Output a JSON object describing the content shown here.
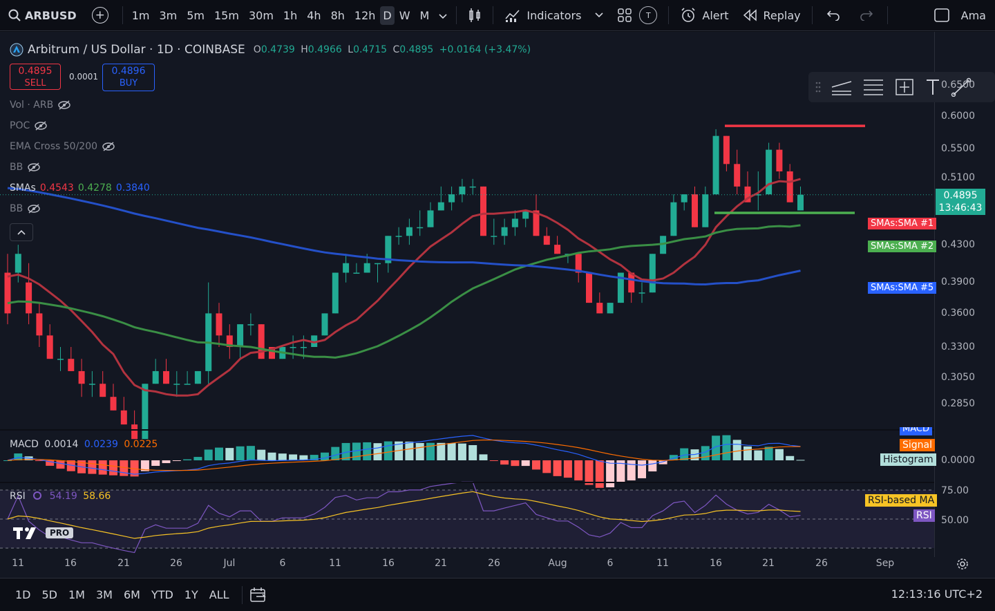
{
  "toolbar": {
    "symbol": "ARBUSD",
    "intervals": [
      "1m",
      "3m",
      "5m",
      "15m",
      "30m",
      "1h",
      "4h",
      "8h",
      "12h",
      "D",
      "W",
      "M"
    ],
    "active_interval": "D",
    "indicators_label": "Indicators",
    "alert_label": "Alert",
    "replay_label": "Replay",
    "account_label": "Ama",
    "t_badge": "T"
  },
  "legend": {
    "title": "Arbitrum / US Dollar · 1D · COINBASE",
    "o_label": "O",
    "o": "0.4739",
    "h_label": "H",
    "h": "0.4966",
    "l_label": "L",
    "l": "0.4715",
    "c_label": "C",
    "c": "0.4895",
    "change": "+0.0164 (+3.47%)"
  },
  "trade": {
    "sell_price": "0.4895",
    "sell_label": "SELL",
    "spread": "0.0001",
    "buy_price": "0.4896",
    "buy_label": "BUY"
  },
  "indicators": {
    "vol": "Vol · ARB",
    "poc": "POC",
    "ema_cross": "EMA Cross 50/200",
    "bb1": "BB",
    "smas_label": "SMAs",
    "sma1": "0.4543",
    "sma2": "0.4278",
    "sma5": "0.3840",
    "bb2": "BB"
  },
  "price_scale": [
    "0.6500",
    "0.6000",
    "0.5500",
    "0.5100",
    "0.4300",
    "0.3900",
    "0.3600",
    "0.3300",
    "0.3050",
    "0.2850"
  ],
  "last_price": {
    "price": "0.4895",
    "countdown": "13:46:43"
  },
  "sma_tags": {
    "sma1": "SMAs:SMA #1",
    "sma2": "SMAs:SMA #2",
    "sma5": "SMAs:SMA #5"
  },
  "macd": {
    "label": "MACD",
    "hist": "0.0014",
    "macd": "0.0239",
    "signal": "0.0225",
    "tag_macd": "MACD",
    "tag_signal": "Signal",
    "tag_hist": "Histogram",
    "zero": "0.0000"
  },
  "rsi": {
    "label": "RSI",
    "value": "54.19",
    "ma": "58.66",
    "tag_ma": "RSI-based MA",
    "tag_rsi": "RSI",
    "level_75": "75.00",
    "level_50": "50.00"
  },
  "logo": {
    "pro": "PRO"
  },
  "time_axis": [
    {
      "label": "11",
      "x": 26
    },
    {
      "label": "16",
      "x": 102
    },
    {
      "label": "21",
      "x": 179
    },
    {
      "label": "26",
      "x": 255
    },
    {
      "label": "Jul",
      "x": 332
    },
    {
      "label": "6",
      "x": 409
    },
    {
      "label": "11",
      "x": 485
    },
    {
      "label": "16",
      "x": 562
    },
    {
      "label": "21",
      "x": 638
    },
    {
      "label": "26",
      "x": 715
    },
    {
      "label": "Aug",
      "x": 807
    },
    {
      "label": "6",
      "x": 883
    },
    {
      "label": "11",
      "x": 959
    },
    {
      "label": "16",
      "x": 1036
    },
    {
      "label": "21",
      "x": 1112
    },
    {
      "label": "26",
      "x": 1189
    },
    {
      "label": "Sep",
      "x": 1281
    }
  ],
  "bottom": {
    "ranges": [
      "1D",
      "5D",
      "1M",
      "3M",
      "6M",
      "YTD",
      "1Y",
      "ALL"
    ],
    "clock": "12:13:16 UTC+2"
  },
  "chart_data": {
    "type": "candlestick",
    "title": "Arbitrum / US Dollar · 1D · COINBASE",
    "price_range": [
      0.26,
      0.68
    ],
    "candles": [
      [
        0.4,
        0.42,
        0.35,
        0.36
      ],
      [
        0.4,
        0.43,
        0.39,
        0.42
      ],
      [
        0.39,
        0.41,
        0.35,
        0.36
      ],
      [
        0.36,
        0.37,
        0.33,
        0.34
      ],
      [
        0.34,
        0.35,
        0.32,
        0.32
      ],
      [
        0.32,
        0.33,
        0.31,
        0.32
      ],
      [
        0.32,
        0.33,
        0.31,
        0.31
      ],
      [
        0.31,
        0.32,
        0.29,
        0.3
      ],
      [
        0.3,
        0.31,
        0.29,
        0.3
      ],
      [
        0.3,
        0.31,
        0.29,
        0.29
      ],
      [
        0.29,
        0.3,
        0.28,
        0.28
      ],
      [
        0.28,
        0.29,
        0.27,
        0.27
      ],
      [
        0.27,
        0.28,
        0.26,
        0.26
      ],
      [
        0.26,
        0.3,
        0.26,
        0.3
      ],
      [
        0.3,
        0.32,
        0.3,
        0.31
      ],
      [
        0.31,
        0.32,
        0.3,
        0.3
      ],
      [
        0.3,
        0.31,
        0.29,
        0.3
      ],
      [
        0.3,
        0.31,
        0.3,
        0.3
      ],
      [
        0.3,
        0.31,
        0.3,
        0.31
      ],
      [
        0.31,
        0.39,
        0.3,
        0.36
      ],
      [
        0.36,
        0.37,
        0.33,
        0.34
      ],
      [
        0.34,
        0.35,
        0.32,
        0.33
      ],
      [
        0.33,
        0.35,
        0.32,
        0.35
      ],
      [
        0.35,
        0.36,
        0.34,
        0.35
      ],
      [
        0.35,
        0.35,
        0.32,
        0.32
      ],
      [
        0.33,
        0.33,
        0.32,
        0.32
      ],
      [
        0.32,
        0.33,
        0.32,
        0.33
      ],
      [
        0.33,
        0.34,
        0.32,
        0.33
      ],
      [
        0.33,
        0.34,
        0.32,
        0.33
      ],
      [
        0.33,
        0.34,
        0.33,
        0.34
      ],
      [
        0.34,
        0.36,
        0.34,
        0.36
      ],
      [
        0.36,
        0.4,
        0.36,
        0.4
      ],
      [
        0.4,
        0.42,
        0.39,
        0.41
      ],
      [
        0.4,
        0.41,
        0.4,
        0.4
      ],
      [
        0.4,
        0.42,
        0.4,
        0.41
      ],
      [
        0.41,
        0.41,
        0.39,
        0.41
      ],
      [
        0.41,
        0.44,
        0.4,
        0.44
      ],
      [
        0.44,
        0.45,
        0.43,
        0.44
      ],
      [
        0.44,
        0.46,
        0.43,
        0.45
      ],
      [
        0.45,
        0.47,
        0.44,
        0.45
      ],
      [
        0.45,
        0.48,
        0.45,
        0.47
      ],
      [
        0.47,
        0.5,
        0.47,
        0.48
      ],
      [
        0.48,
        0.5,
        0.47,
        0.49
      ],
      [
        0.49,
        0.51,
        0.48,
        0.5
      ],
      [
        0.5,
        0.51,
        0.49,
        0.5
      ],
      [
        0.5,
        0.5,
        0.44,
        0.44
      ],
      [
        0.44,
        0.46,
        0.43,
        0.44
      ],
      [
        0.44,
        0.46,
        0.43,
        0.45
      ],
      [
        0.45,
        0.47,
        0.44,
        0.46
      ],
      [
        0.46,
        0.47,
        0.45,
        0.47
      ],
      [
        0.47,
        0.49,
        0.44,
        0.44
      ],
      [
        0.44,
        0.45,
        0.43,
        0.43
      ],
      [
        0.43,
        0.44,
        0.42,
        0.42
      ],
      [
        0.42,
        0.42,
        0.41,
        0.42
      ],
      [
        0.42,
        0.42,
        0.39,
        0.4
      ],
      [
        0.4,
        0.4,
        0.37,
        0.37
      ],
      [
        0.37,
        0.38,
        0.36,
        0.36
      ],
      [
        0.36,
        0.37,
        0.36,
        0.37
      ],
      [
        0.37,
        0.4,
        0.37,
        0.4
      ],
      [
        0.4,
        0.4,
        0.37,
        0.38
      ],
      [
        0.38,
        0.39,
        0.37,
        0.38
      ],
      [
        0.38,
        0.42,
        0.38,
        0.42
      ],
      [
        0.42,
        0.44,
        0.42,
        0.44
      ],
      [
        0.44,
        0.49,
        0.44,
        0.48
      ],
      [
        0.48,
        0.49,
        0.47,
        0.49
      ],
      [
        0.49,
        0.5,
        0.45,
        0.45
      ],
      [
        0.45,
        0.5,
        0.45,
        0.49
      ],
      [
        0.49,
        0.58,
        0.49,
        0.57
      ],
      [
        0.57,
        0.57,
        0.52,
        0.53
      ],
      [
        0.53,
        0.55,
        0.49,
        0.5
      ],
      [
        0.5,
        0.52,
        0.48,
        0.48
      ],
      [
        0.49,
        0.52,
        0.47,
        0.49
      ],
      [
        0.49,
        0.56,
        0.49,
        0.55
      ],
      [
        0.55,
        0.56,
        0.51,
        0.52
      ],
      [
        0.52,
        0.53,
        0.48,
        0.48
      ],
      [
        0.47,
        0.5,
        0.47,
        0.4895
      ]
    ],
    "sma_series": [
      {
        "name": "SMA #1",
        "value": 0.4543
      },
      {
        "name": "SMA #2",
        "value": 0.4278
      },
      {
        "name": "SMA #5",
        "value": 0.384
      }
    ],
    "horizontal_lines": [
      {
        "color": "red",
        "price": 0.585
      },
      {
        "color": "green",
        "price": 0.467
      }
    ],
    "macd_pane": {
      "hist": 0.0014,
      "macd": 0.0239,
      "signal": 0.0225
    },
    "rsi_pane": {
      "rsi": 54.19,
      "ma": 58.66,
      "levels": [
        50,
        75
      ]
    }
  }
}
